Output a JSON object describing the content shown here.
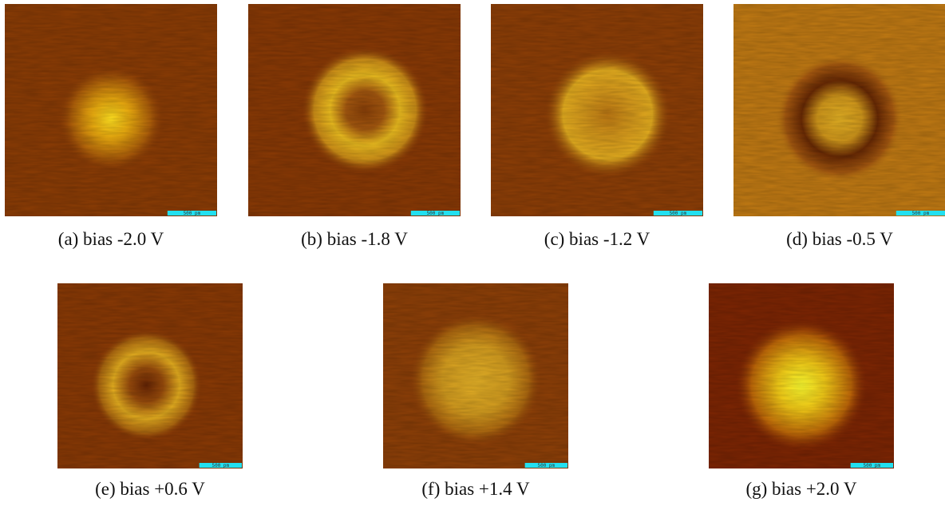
{
  "panels": [
    {
      "caption": "(a) bias -2.0 V",
      "scale_bar": "500 pm"
    },
    {
      "caption": "(b) bias -1.8 V",
      "scale_bar": "500 pm"
    },
    {
      "caption": "(c) bias -1.2 V",
      "scale_bar": "500 pm"
    },
    {
      "caption": "(d) bias -0.5 V",
      "scale_bar": "500 pm"
    },
    {
      "caption": "(e) bias +0.6 V",
      "scale_bar": "500 pm"
    },
    {
      "caption": "(f) bias +1.4 V",
      "scale_bar": "500 pm"
    },
    {
      "caption": "(g) bias +2.0 V",
      "scale_bar": "500 pm"
    }
  ]
}
